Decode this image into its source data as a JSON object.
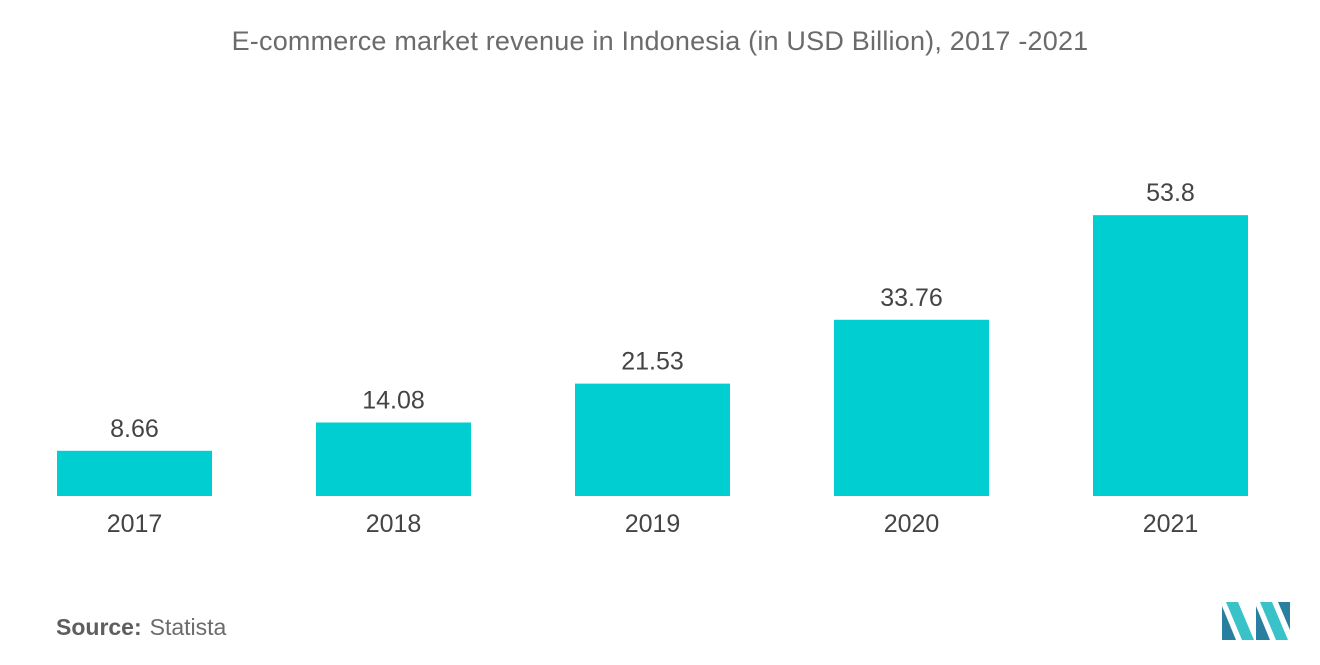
{
  "chart_data": {
    "type": "bar",
    "title": "E-commerce market revenue in Indonesia (in USD Billion), 2017 -2021",
    "categories": [
      "2017",
      "2018",
      "2019",
      "2020",
      "2021"
    ],
    "values": [
      8.66,
      14.08,
      21.53,
      33.76,
      53.8
    ],
    "value_labels": [
      "8.66",
      "14.08",
      "21.53",
      "33.76",
      "53.8"
    ],
    "xlabel": "",
    "ylabel": "",
    "ylim": [
      0,
      60
    ],
    "grid": false,
    "legend": "none",
    "bar_color": "#00CED1"
  },
  "footer": {
    "source_label": "Source:",
    "source_value": "Statista"
  },
  "colors": {
    "bar": "#00CED1",
    "text": "#555555",
    "logo_dark": "#2a7f9e",
    "logo_light": "#39c3c9"
  }
}
